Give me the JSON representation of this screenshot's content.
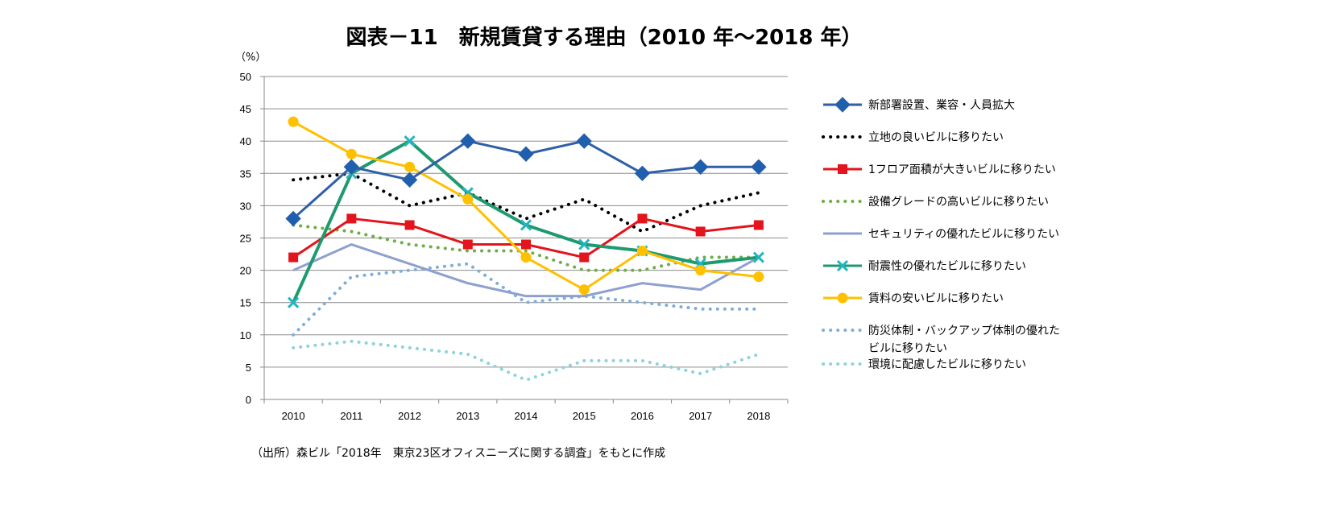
{
  "chart_data": {
    "type": "line",
    "title": "図表－11　新規賃貸する理由（2010 年～2018 年）",
    "ylabel": "（%）",
    "source": "（出所）森ビル「2018年　東京23区オフィスニーズに関する調査」をもとに作成",
    "categories": [
      "2010",
      "2011",
      "2012",
      "2013",
      "2014",
      "2015",
      "2016",
      "2017",
      "2018"
    ],
    "ylim": [
      0,
      50
    ],
    "yticks": [
      0,
      5,
      10,
      15,
      20,
      25,
      30,
      35,
      40,
      45,
      50
    ],
    "grid": true,
    "legend": "right",
    "series": [
      {
        "name": "新部署設置、業容・人員拡大",
        "color": "#2E5FA8",
        "marker": "diamond",
        "style": "solid",
        "values": [
          28,
          36,
          34,
          40,
          38,
          40,
          35,
          36,
          36
        ]
      },
      {
        "name": "立地の良いビルに移りたい",
        "color": "#000000",
        "marker": "none",
        "style": "dotted",
        "values": [
          34,
          35,
          30,
          32,
          28,
          31,
          26,
          30,
          32
        ]
      },
      {
        "name": "1フロア面積が大きいビルに移りたい",
        "color": "#E3141B",
        "marker": "square",
        "style": "solid",
        "values": [
          22,
          28,
          27,
          24,
          24,
          22,
          28,
          26,
          27
        ]
      },
      {
        "name": "設備グレードの高いビルに移りたい",
        "color": "#70AD47",
        "marker": "none",
        "style": "dotted",
        "values": [
          27,
          26,
          24,
          23,
          23,
          20,
          20,
          22,
          22
        ]
      },
      {
        "name": "セキュリティの優れたビルに移りたい",
        "color": "#8EA0D0",
        "marker": "none",
        "style": "solid",
        "values": [
          20,
          24,
          21,
          18,
          16,
          16,
          18,
          17,
          22
        ]
      },
      {
        "name": "耐震性の優れたビルに移りたい",
        "color": "#1E9A6E",
        "marker": "x",
        "style": "solid",
        "values": [
          15,
          35,
          40,
          32,
          27,
          24,
          23,
          21,
          22
        ]
      },
      {
        "name": "賃料の安いビルに移りたい",
        "color": "#FFC000",
        "marker": "circle",
        "style": "solid",
        "values": [
          43,
          38,
          36,
          31,
          22,
          17,
          23,
          20,
          19
        ]
      },
      {
        "name": "防災体制・バックアップ体制の優れたビルに移りたい",
        "color": "#7FAEDC",
        "marker": "none",
        "style": "dotted",
        "values": [
          10,
          19,
          20,
          21,
          15,
          16,
          15,
          14,
          14
        ]
      },
      {
        "name": "環境に配慮したビルに移りたい",
        "color": "#8ED3DC",
        "marker": "none",
        "style": "dotted",
        "values": [
          8,
          9,
          8,
          7,
          3,
          6,
          6,
          4,
          7
        ]
      }
    ]
  }
}
